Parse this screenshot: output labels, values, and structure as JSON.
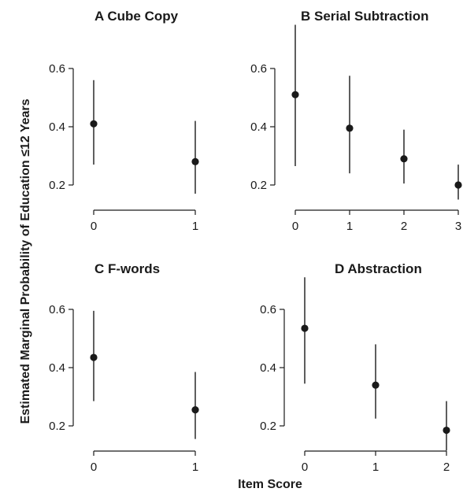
{
  "figure": {
    "ylabel": "Estimated Marginal Probability of Education ≤12  Years",
    "xlabel": "Item Score"
  },
  "chart_data": [
    {
      "type": "scatter",
      "title": "A  Cube Copy",
      "x": [
        0,
        1
      ],
      "y": [
        0.41,
        0.28
      ],
      "ci_low": [
        0.27,
        0.17
      ],
      "ci_high": [
        0.56,
        0.42
      ],
      "xticks": [
        "0",
        "1"
      ],
      "xlim": [
        0,
        1
      ],
      "yticks": [
        "0.2",
        "0.4",
        "0.6"
      ],
      "ylim": [
        0.15,
        0.75
      ],
      "errorbars": "vertical confidence intervals",
      "grid": false
    },
    {
      "type": "scatter",
      "title": "B  Serial Subtraction",
      "x": [
        0,
        1,
        2,
        3
      ],
      "y": [
        0.51,
        0.395,
        0.29,
        0.2
      ],
      "ci_low": [
        0.265,
        0.24,
        0.205,
        0.15
      ],
      "ci_high": [
        0.75,
        0.575,
        0.39,
        0.27
      ],
      "xticks": [
        "0",
        "1",
        "2",
        "3"
      ],
      "xlim": [
        0,
        3
      ],
      "yticks": [
        "0.2",
        "0.4",
        "0.6"
      ],
      "ylim": [
        0.15,
        0.75
      ],
      "errorbars": "vertical confidence intervals",
      "grid": false
    },
    {
      "type": "scatter",
      "title": "C  F-words",
      "x": [
        0,
        1
      ],
      "y": [
        0.435,
        0.255
      ],
      "ci_low": [
        0.285,
        0.155
      ],
      "ci_high": [
        0.595,
        0.385
      ],
      "xticks": [
        "0",
        "1"
      ],
      "xlim": [
        0,
        1
      ],
      "yticks": [
        "0.2",
        "0.4",
        "0.6"
      ],
      "ylim": [
        0.15,
        0.75
      ],
      "errorbars": "vertical confidence intervals",
      "grid": false
    },
    {
      "type": "scatter",
      "title": "D  Abstraction",
      "x": [
        0,
        1,
        2
      ],
      "y": [
        0.535,
        0.34,
        0.185
      ],
      "ci_low": [
        0.345,
        0.225,
        0.115
      ],
      "ci_high": [
        0.71,
        0.48,
        0.285
      ],
      "xticks": [
        "0",
        "1",
        "2"
      ],
      "xlim": [
        0,
        2
      ],
      "yticks": [
        "0.2",
        "0.4",
        "0.6"
      ],
      "ylim": [
        0.15,
        0.75
      ],
      "errorbars": "vertical confidence intervals",
      "grid": false
    }
  ]
}
